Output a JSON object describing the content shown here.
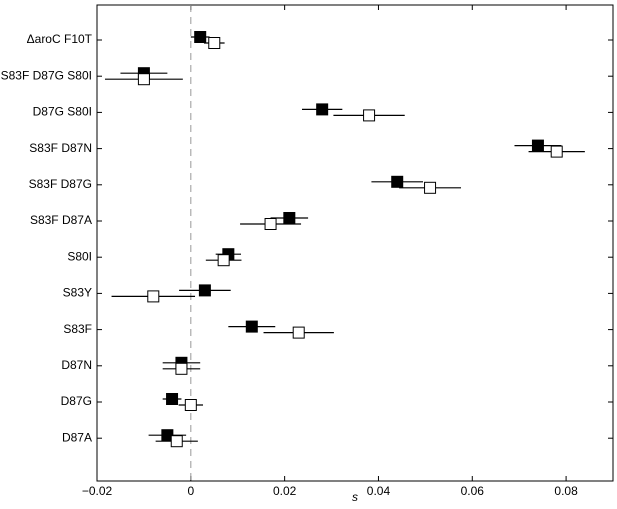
{
  "chart_data": {
    "type": "errorbar-dot",
    "x_label": "s",
    "categories": [
      "ΔaroC F10T",
      "S83F D87G S80I",
      "D87G S80I",
      "S83F D87N",
      "S83F D87G",
      "S83F D87A",
      "S80I",
      "S83Y",
      "S83F",
      "D87N",
      "D87G",
      "D87A"
    ],
    "series": [
      {
        "color": "#000000",
        "values": [
          0.002,
          -0.01,
          0.028,
          0.074,
          0.044,
          0.021,
          0.008,
          0.003,
          0.013,
          -0.002,
          -0.004,
          -0.005
        ],
        "errors": [
          0.002,
          0.005,
          0.0043,
          0.005,
          0.0055,
          0.004,
          0.0027,
          0.0055,
          0.005,
          0.004,
          0.002,
          0.004
        ]
      },
      {
        "color": "#ffffff",
        "values": [
          0.005,
          -0.01,
          0.038,
          0.078,
          0.051,
          0.017,
          0.007,
          -0.008,
          0.023,
          -0.002,
          0.0,
          -0.003
        ],
        "errors": [
          0.0022,
          0.0083,
          0.0076,
          0.006,
          0.0066,
          0.0065,
          0.0038,
          0.0089,
          0.0075,
          0.004,
          0.0026,
          0.0045
        ]
      }
    ],
    "xlim": [
      -0.02,
      0.09
    ],
    "xticks": [
      {
        "value": -0.02,
        "label": "−0.02"
      },
      0,
      0.02,
      0.04,
      0.06,
      0.08
    ],
    "reference_line": 0
  }
}
